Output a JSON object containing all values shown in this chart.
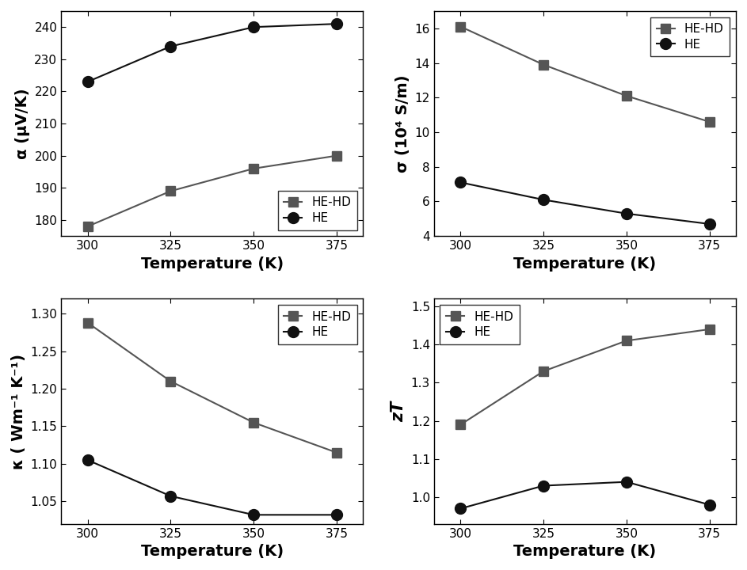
{
  "temperature": [
    300,
    325,
    350,
    375
  ],
  "alpha": {
    "HE-HD": [
      178,
      189,
      196,
      200
    ],
    "HE": [
      223,
      234,
      240,
      241
    ]
  },
  "sigma": {
    "HE-HD": [
      16.1,
      13.9,
      12.1,
      10.6
    ],
    "HE": [
      7.1,
      6.1,
      5.3,
      4.7
    ]
  },
  "kappa": {
    "HE-HD": [
      1.288,
      1.21,
      1.155,
      1.115
    ],
    "HE": [
      1.105,
      1.057,
      1.032,
      1.032
    ]
  },
  "zT": {
    "HE-HD": [
      1.19,
      1.33,
      1.41,
      1.44
    ],
    "HE": [
      0.97,
      1.03,
      1.04,
      0.98
    ]
  },
  "color_sq": "#555555",
  "color_ci": "#111111",
  "xlabel": "Temperature (K)",
  "ylabel_alpha": "α (μV/K)",
  "ylabel_sigma": "σ (10⁴ S/m)",
  "ylabel_kappa": "κ ( Wm⁻¹ K⁻¹)",
  "ylabel_zT": "zT",
  "alpha_ylim": [
    175,
    245
  ],
  "alpha_yticks": [
    180,
    190,
    200,
    210,
    220,
    230,
    240
  ],
  "sigma_ylim": [
    4,
    17
  ],
  "sigma_yticks": [
    4,
    6,
    8,
    10,
    12,
    14,
    16
  ],
  "kappa_ylim": [
    1.02,
    1.32
  ],
  "kappa_yticks": [
    1.05,
    1.1,
    1.15,
    1.2,
    1.25,
    1.3
  ],
  "zT_ylim": [
    0.93,
    1.52
  ],
  "zT_yticks": [
    1.0,
    1.1,
    1.2,
    1.3,
    1.4,
    1.5
  ],
  "xticks": [
    300,
    325,
    350,
    375
  ],
  "xlim": [
    292,
    383
  ],
  "legend_sq": "HE-HD",
  "legend_ci": "HE",
  "alpha_legend_loc": "lower right",
  "sigma_legend_loc": "upper right",
  "kappa_legend_loc": "upper right",
  "zT_legend_loc": "upper left",
  "label_fontsize": 14,
  "tick_fontsize": 11,
  "legend_fontsize": 11,
  "marker_sq": "s",
  "marker_ci": "o",
  "ms_sq": 8,
  "ms_ci": 10,
  "lw": 1.5
}
